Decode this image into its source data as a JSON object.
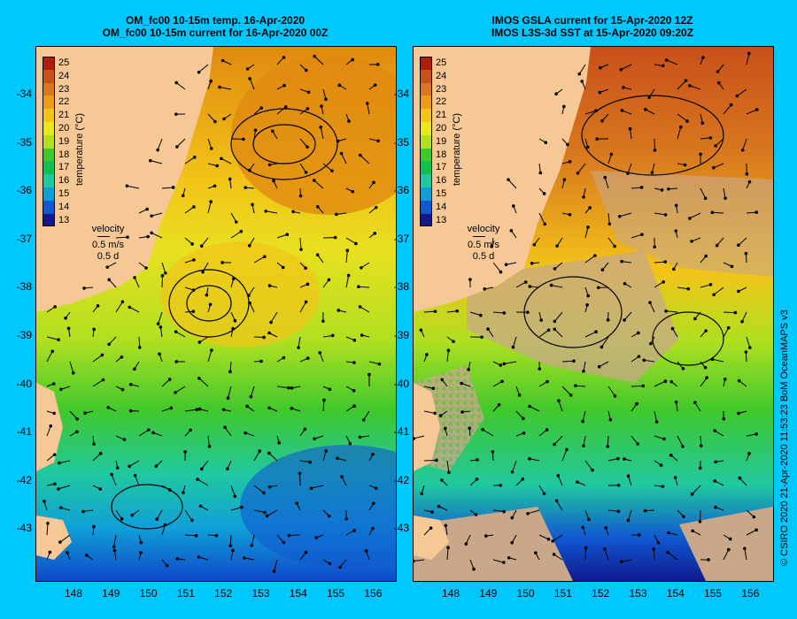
{
  "left_panel": {
    "title_line1": "OM_fc00 10-15m temp. 16-Apr-2020",
    "title_line2": "OM_fc00 10-15m current for 16-Apr-2020 00Z"
  },
  "right_panel": {
    "title_line1": "IMOS GSLA current for 15-Apr-2020 12Z",
    "title_line2": "IMOS L3S-3d SST at 15-Apr-2020 09:20Z"
  },
  "colorbar": {
    "label": "temperature (°C)",
    "ticks": [
      "25",
      "24",
      "23",
      "22",
      "21",
      "20",
      "19",
      "18",
      "17",
      "16",
      "15",
      "14",
      "13"
    ],
    "colors": [
      "#b01c0c",
      "#c8501a",
      "#d8781e",
      "#ec9c18",
      "#f2c418",
      "#e8e81c",
      "#b0e020",
      "#40c82c",
      "#10c050",
      "#20c8a0",
      "#10a0d8",
      "#1058d0",
      "#101890"
    ]
  },
  "velocity_legend": {
    "title": "velocity",
    "speed": "0.5 m/s",
    "duration": "0.5 d"
  },
  "axes": {
    "lat_ticks": [
      "-34",
      "-35",
      "-36",
      "-37",
      "-38",
      "-39",
      "-40",
      "-41",
      "-42",
      "-43"
    ],
    "lon_ticks": [
      "148",
      "149",
      "150",
      "151",
      "152",
      "153",
      "154",
      "155",
      "156"
    ]
  },
  "credit": "© CSIRO 2020   21-Apr-2020 11:53:23 BoM OceanMAPS v3"
}
